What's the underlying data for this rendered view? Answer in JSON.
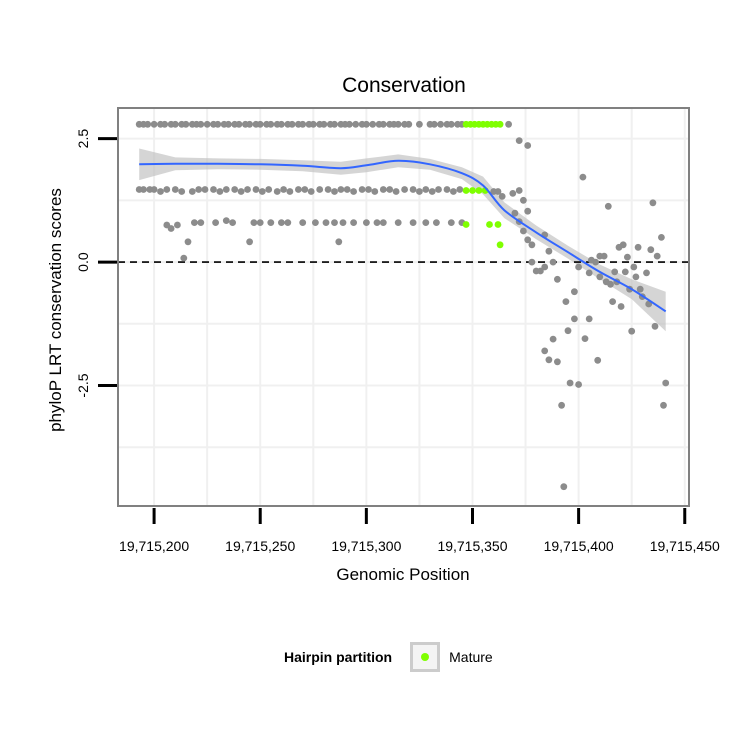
{
  "chart_data": {
    "type": "scatter",
    "title": "Conservation",
    "xlabel": "Genomic Position",
    "ylabel": "phyloP LRT conservation scores",
    "xlim": [
      19715183,
      19715452
    ],
    "ylim": [
      -4.94,
      3.12
    ],
    "xticks": [
      19715200,
      19715250,
      19715300,
      19715350,
      19715400,
      19715450
    ],
    "xtick_labels": [
      "19,715,200",
      "19,715,250",
      "19,715,300",
      "19,715,350",
      "19,715,400",
      "19,715,450"
    ],
    "yticks": [
      2.5,
      0.0,
      -2.5
    ],
    "ytick_labels": [
      "2.5",
      "0.0",
      "-2.5"
    ],
    "reference_line": {
      "y": 0,
      "style": "dashed"
    },
    "grid": true,
    "legend": {
      "title": "Hairpin partition",
      "position": "bottom",
      "entries": [
        {
          "label": "Mature",
          "color": "#7fff00"
        }
      ]
    },
    "colors": {
      "other": "#8c8c8c",
      "mature": "#7fff00",
      "smooth": "#3366ff",
      "band": "#bfbfbf",
      "panel_border": "#808080",
      "grid": "#f0f0f0"
    },
    "series": [
      {
        "name": "Other",
        "color": "#8c8c8c",
        "points": [
          [
            19715193,
            2.79
          ],
          [
            19715195,
            2.79
          ],
          [
            19715197,
            2.79
          ],
          [
            19715200,
            2.79
          ],
          [
            19715203,
            2.79
          ],
          [
            19715205,
            2.79
          ],
          [
            19715208,
            2.79
          ],
          [
            19715210,
            2.79
          ],
          [
            19715213,
            2.79
          ],
          [
            19715215,
            2.79
          ],
          [
            19715218,
            2.79
          ],
          [
            19715220,
            2.79
          ],
          [
            19715222,
            2.79
          ],
          [
            19715225,
            2.79
          ],
          [
            19715228,
            2.79
          ],
          [
            19715230,
            2.79
          ],
          [
            19715233,
            2.79
          ],
          [
            19715235,
            2.79
          ],
          [
            19715238,
            2.79
          ],
          [
            19715240,
            2.79
          ],
          [
            19715243,
            2.79
          ],
          [
            19715245,
            2.79
          ],
          [
            19715248,
            2.79
          ],
          [
            19715250,
            2.79
          ],
          [
            19715253,
            2.79
          ],
          [
            19715255,
            2.79
          ],
          [
            19715258,
            2.79
          ],
          [
            19715260,
            2.79
          ],
          [
            19715263,
            2.79
          ],
          [
            19715265,
            2.79
          ],
          [
            19715268,
            2.79
          ],
          [
            19715270,
            2.79
          ],
          [
            19715273,
            2.79
          ],
          [
            19715275,
            2.79
          ],
          [
            19715278,
            2.79
          ],
          [
            19715280,
            2.79
          ],
          [
            19715283,
            2.79
          ],
          [
            19715285,
            2.79
          ],
          [
            19715288,
            2.79
          ],
          [
            19715290,
            2.79
          ],
          [
            19715292,
            2.79
          ],
          [
            19715295,
            2.79
          ],
          [
            19715298,
            2.79
          ],
          [
            19715300,
            2.79
          ],
          [
            19715303,
            2.79
          ],
          [
            19715306,
            2.79
          ],
          [
            19715308,
            2.79
          ],
          [
            19715311,
            2.79
          ],
          [
            19715313,
            2.79
          ],
          [
            19715315,
            2.79
          ],
          [
            19715318,
            2.79
          ],
          [
            19715320,
            2.79
          ],
          [
            19715325,
            2.79
          ],
          [
            19715330,
            2.79
          ],
          [
            19715332,
            2.79
          ],
          [
            19715335,
            2.79
          ],
          [
            19715338,
            2.79
          ],
          [
            19715340,
            2.79
          ],
          [
            19715343,
            2.79
          ],
          [
            19715345,
            2.79
          ],
          [
            19715367,
            2.79
          ],
          [
            19715193,
            1.47
          ],
          [
            19715195,
            1.47
          ],
          [
            19715198,
            1.47
          ],
          [
            19715200,
            1.47
          ],
          [
            19715203,
            1.43
          ],
          [
            19715206,
            1.47
          ],
          [
            19715210,
            1.47
          ],
          [
            19715213,
            1.43
          ],
          [
            19715218,
            1.43
          ],
          [
            19715221,
            1.47
          ],
          [
            19715224,
            1.47
          ],
          [
            19715228,
            1.47
          ],
          [
            19715231,
            1.43
          ],
          [
            19715234,
            1.47
          ],
          [
            19715238,
            1.47
          ],
          [
            19715241,
            1.43
          ],
          [
            19715244,
            1.47
          ],
          [
            19715248,
            1.47
          ],
          [
            19715251,
            1.43
          ],
          [
            19715254,
            1.47
          ],
          [
            19715258,
            1.43
          ],
          [
            19715261,
            1.47
          ],
          [
            19715264,
            1.43
          ],
          [
            19715268,
            1.47
          ],
          [
            19715271,
            1.47
          ],
          [
            19715274,
            1.43
          ],
          [
            19715278,
            1.47
          ],
          [
            19715282,
            1.47
          ],
          [
            19715285,
            1.43
          ],
          [
            19715288,
            1.47
          ],
          [
            19715291,
            1.47
          ],
          [
            19715294,
            1.43
          ],
          [
            19715298,
            1.47
          ],
          [
            19715301,
            1.47
          ],
          [
            19715304,
            1.43
          ],
          [
            19715308,
            1.47
          ],
          [
            19715311,
            1.47
          ],
          [
            19715314,
            1.43
          ],
          [
            19715318,
            1.47
          ],
          [
            19715322,
            1.47
          ],
          [
            19715325,
            1.43
          ],
          [
            19715328,
            1.47
          ],
          [
            19715331,
            1.43
          ],
          [
            19715334,
            1.47
          ],
          [
            19715338,
            1.47
          ],
          [
            19715341,
            1.43
          ],
          [
            19715344,
            1.47
          ],
          [
            19715206,
            0.75
          ],
          [
            19715208,
            0.68
          ],
          [
            19715211,
            0.75
          ],
          [
            19715214,
            0.08
          ],
          [
            19715216,
            0.41
          ],
          [
            19715219,
            0.8
          ],
          [
            19715222,
            0.8
          ],
          [
            19715229,
            0.8
          ],
          [
            19715234,
            0.84
          ],
          [
            19715237,
            0.8
          ],
          [
            19715245,
            0.41
          ],
          [
            19715247,
            0.8
          ],
          [
            19715250,
            0.8
          ],
          [
            19715255,
            0.8
          ],
          [
            19715260,
            0.8
          ],
          [
            19715263,
            0.8
          ],
          [
            19715270,
            0.8
          ],
          [
            19715276,
            0.8
          ],
          [
            19715281,
            0.8
          ],
          [
            19715285,
            0.8
          ],
          [
            19715287,
            0.41
          ],
          [
            19715289,
            0.8
          ],
          [
            19715294,
            0.8
          ],
          [
            19715300,
            0.8
          ],
          [
            19715305,
            0.8
          ],
          [
            19715308,
            0.8
          ],
          [
            19715315,
            0.8
          ],
          [
            19715322,
            0.8
          ],
          [
            19715328,
            0.8
          ],
          [
            19715333,
            0.8
          ],
          [
            19715340,
            0.8
          ],
          [
            19715345,
            0.8
          ],
          [
            19715360,
            1.43
          ],
          [
            19715362,
            1.43
          ],
          [
            19715364,
            1.33
          ],
          [
            19715372,
            2.46
          ],
          [
            19715376,
            2.36
          ],
          [
            19715369,
            1.39
          ],
          [
            19715372,
            1.45
          ],
          [
            19715374,
            1.25
          ],
          [
            19715376,
            1.03
          ],
          [
            19715370,
            0.99
          ],
          [
            19715372,
            0.82
          ],
          [
            19715374,
            0.63
          ],
          [
            19715376,
            0.45
          ],
          [
            19715378,
            0.35
          ],
          [
            19715378,
            0.0
          ],
          [
            19715380,
            -0.18
          ],
          [
            19715382,
            -0.18
          ],
          [
            19715384,
            -0.1
          ],
          [
            19715386,
            0.22
          ],
          [
            19715388,
            0.0
          ],
          [
            19715390,
            -0.35
          ],
          [
            19715384,
            0.55
          ],
          [
            19715384,
            -1.8
          ],
          [
            19715386,
            -1.98
          ],
          [
            19715388,
            -1.56
          ],
          [
            19715390,
            -2.02
          ],
          [
            19715392,
            -2.9
          ],
          [
            19715393,
            -4.55
          ],
          [
            19715394,
            -0.8
          ],
          [
            19715395,
            -1.39
          ],
          [
            19715396,
            -2.45
          ],
          [
            19715398,
            -1.15
          ],
          [
            19715398,
            -0.6
          ],
          [
            19715400,
            -2.48
          ],
          [
            19715400,
            -0.1
          ],
          [
            19715402,
            1.72
          ],
          [
            19715403,
            -1.55
          ],
          [
            19715405,
            -1.15
          ],
          [
            19715405,
            -0.22
          ],
          [
            19715406,
            0.04
          ],
          [
            19715408,
            0.0
          ],
          [
            19715409,
            -1.99
          ],
          [
            19715410,
            0.12
          ],
          [
            19715410,
            -0.3
          ],
          [
            19715412,
            0.12
          ],
          [
            19715413,
            -0.4
          ],
          [
            19715414,
            1.13
          ],
          [
            19715415,
            -0.45
          ],
          [
            19715416,
            -0.8
          ],
          [
            19715417,
            -0.2
          ],
          [
            19715418,
            -0.4
          ],
          [
            19715419,
            0.3
          ],
          [
            19715420,
            -0.9
          ],
          [
            19715421,
            0.35
          ],
          [
            19715422,
            -0.2
          ],
          [
            19715423,
            0.1
          ],
          [
            19715424,
            -0.55
          ],
          [
            19715425,
            -1.4
          ],
          [
            19715426,
            -0.1
          ],
          [
            19715427,
            -0.3
          ],
          [
            19715428,
            0.3
          ],
          [
            19715429,
            -0.55
          ],
          [
            19715430,
            -0.7
          ],
          [
            19715432,
            -0.22
          ],
          [
            19715433,
            -0.85
          ],
          [
            19715434,
            0.25
          ],
          [
            19715435,
            1.2
          ],
          [
            19715436,
            -1.3
          ],
          [
            19715437,
            0.12
          ],
          [
            19715439,
            0.5
          ],
          [
            19715440,
            -2.9
          ],
          [
            19715441,
            -2.45
          ]
        ]
      },
      {
        "name": "Mature",
        "color": "#7fff00",
        "points": [
          [
            19715347,
            2.79
          ],
          [
            19715349,
            2.79
          ],
          [
            19715351,
            2.79
          ],
          [
            19715353,
            2.79
          ],
          [
            19715355,
            2.79
          ],
          [
            19715357,
            2.79
          ],
          [
            19715359,
            2.79
          ],
          [
            19715361,
            2.79
          ],
          [
            19715363,
            2.79
          ],
          [
            19715347,
            1.45
          ],
          [
            19715350,
            1.45
          ],
          [
            19715353,
            1.45
          ],
          [
            19715356,
            1.45
          ],
          [
            19715347,
            0.76
          ],
          [
            19715358,
            0.76
          ],
          [
            19715362,
            0.76
          ],
          [
            19715363,
            0.35
          ]
        ]
      }
    ],
    "smooth": {
      "x": [
        19715193,
        19715210,
        19715230,
        19715250,
        19715270,
        19715288,
        19715300,
        19715315,
        19715330,
        19715345,
        19715355,
        19715365,
        19715380,
        19715395,
        19715410,
        19715425,
        19715441
      ],
      "y": [
        1.98,
        1.99,
        1.99,
        1.98,
        1.95,
        1.9,
        1.96,
        2.05,
        1.98,
        1.8,
        1.55,
        1.05,
        0.6,
        0.2,
        -0.2,
        -0.55,
        -1.0
      ],
      "upper": [
        2.3,
        2.12,
        2.1,
        2.09,
        2.06,
        2.03,
        2.1,
        2.18,
        2.09,
        1.92,
        1.73,
        1.21,
        0.74,
        0.33,
        -0.05,
        -0.35,
        -0.6
      ],
      "lower": [
        1.66,
        1.86,
        1.88,
        1.87,
        1.84,
        1.77,
        1.82,
        1.92,
        1.87,
        1.68,
        1.37,
        0.89,
        0.46,
        0.07,
        -0.35,
        -0.75,
        -1.4
      ]
    }
  }
}
